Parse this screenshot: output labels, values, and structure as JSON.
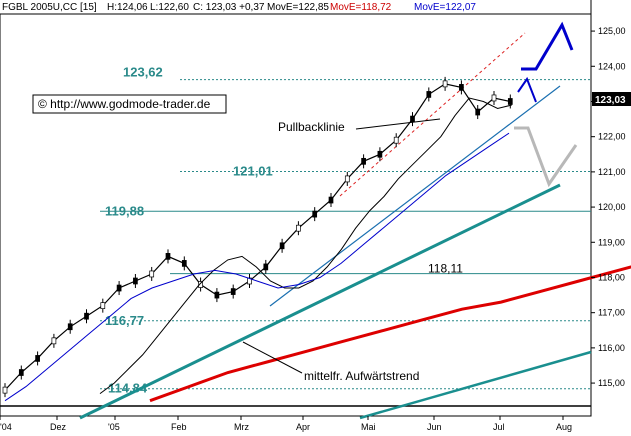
{
  "header": {
    "symbol": "FGBL 2005U,CC [15]",
    "high": "H:124,06",
    "low": "L:122,60",
    "close": "C: 123,03 +0,37",
    "ma1": "MovE=122,85",
    "ma2": "MovE=118,72",
    "ma3": "MovE=122,07",
    "colors": {
      "ma1": "#000000",
      "ma2": "#cc0000",
      "ma3": "#0000cc"
    }
  },
  "copyright": "© http://www.godmode-trader.de",
  "annotations": {
    "pullback": "Pullbacklinie",
    "trend": "mittelfr. Aufwärtstrend"
  },
  "chart_data": {
    "type": "line",
    "title": "",
    "xlabel": "",
    "ylabel": "",
    "ylim": [
      114.5,
      125.5
    ],
    "grid": false,
    "y_ticks": [
      115.0,
      116.0,
      117.0,
      118.0,
      119.0,
      120.0,
      121.0,
      122.0,
      123.0,
      124.0,
      125.0
    ],
    "y_tick_labels": [
      "115,00",
      "116,00",
      "117,00",
      "118,00",
      "119,00",
      "120,00",
      "121,00",
      "122,00",
      "123,00",
      "124,00",
      "125,00"
    ],
    "x_labels": [
      "'04",
      "Dez",
      "'05",
      "Feb",
      "Mrz",
      "Apr",
      "Mai",
      "Jun",
      "Jul",
      "Aug"
    ],
    "last_price": "123,03",
    "levels": [
      {
        "value": 123.62,
        "label": "123,62"
      },
      {
        "value": 121.01,
        "label": "121,01"
      },
      {
        "value": 119.88,
        "label": "119,88"
      },
      {
        "value": 118.11,
        "label": "118,11"
      },
      {
        "value": 116.77,
        "label": "116,77"
      },
      {
        "value": 114.84,
        "label": "114,84"
      }
    ],
    "series": [
      {
        "values": [
          114.8,
          115.3,
          115.7,
          116.2,
          116.6,
          116.9,
          117.2,
          117.7,
          117.9,
          118.1,
          118.6,
          118.4,
          117.8,
          117.5,
          117.6,
          117.9,
          118.3,
          118.9,
          119.4,
          119.8,
          120.2,
          120.8,
          121.3,
          121.5,
          121.9,
          122.5,
          123.2,
          123.5,
          123.4,
          122.7,
          123.1,
          123.0
        ]
      },
      {
        "color": "#000000",
        "values": [
          114.7,
          115.0,
          115.4,
          115.8,
          116.3,
          116.8,
          117.3,
          117.8,
          118.2,
          118.5,
          118.6,
          118.3,
          117.9,
          117.7,
          117.7,
          117.9,
          118.3,
          118.8,
          119.4,
          119.9,
          120.3,
          120.8,
          121.2,
          121.6,
          122.0,
          122.6,
          123.1,
          123.0,
          122.8,
          122.9
        ]
      },
      {
        "color": "#0000cc",
        "values": [
          114.5,
          114.9,
          115.4,
          115.9,
          116.4,
          116.9,
          117.4,
          117.7,
          117.9,
          118.1,
          118.2,
          118.1,
          117.9,
          117.7,
          117.8,
          118.0,
          118.4,
          118.9,
          119.4,
          119.9,
          120.4,
          120.9,
          121.3,
          121.7,
          122.1
        ]
      },
      {
        "color": "#dd0000",
        "values": [
          114.5,
          114.9,
          115.3,
          115.6,
          115.9,
          116.2,
          116.5,
          116.8,
          117.1,
          117.3,
          117.6,
          117.9,
          118.2,
          118.5,
          118.7
        ]
      }
    ]
  }
}
